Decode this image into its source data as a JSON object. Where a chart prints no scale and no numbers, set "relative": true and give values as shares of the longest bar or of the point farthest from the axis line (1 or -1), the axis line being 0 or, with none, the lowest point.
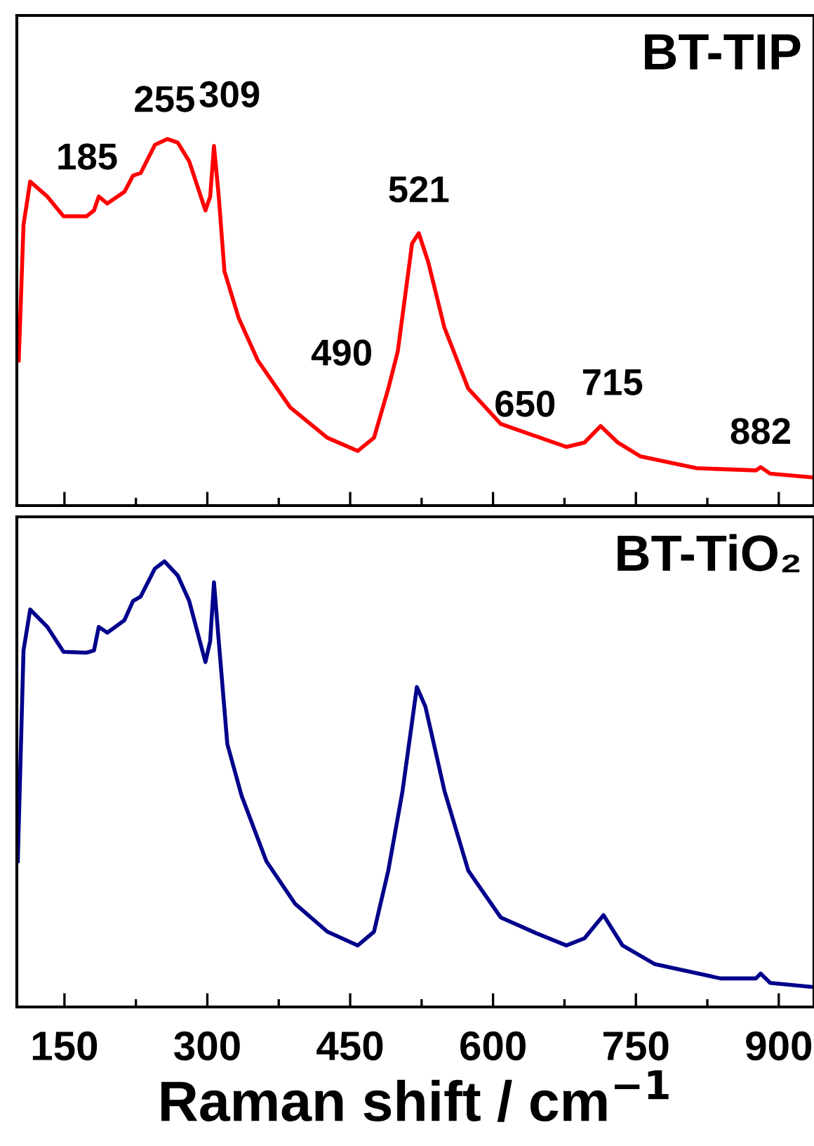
{
  "chart_data": [
    {
      "type": "line",
      "title": "BT-TIP",
      "relative": true,
      "tick_labels": false,
      "legend": false,
      "grid": false,
      "xlim": [
        100,
        937
      ],
      "xticks": [
        150,
        {
          "value": 225,
          "label": null
        },
        300,
        {
          "value": 375,
          "label": null
        },
        450,
        {
          "value": 525,
          "label": null
        },
        600,
        {
          "value": 675,
          "label": null
        },
        750,
        {
          "value": 825,
          "label": null
        },
        900
      ],
      "series": [
        {
          "color": "#ff0000",
          "x": [
            102,
            107,
            114,
            132,
            149,
            173,
            181,
            186,
            195,
            213,
            222,
            230,
            245,
            258,
            269,
            281,
            298,
            303,
            307,
            312,
            318,
            333,
            353,
            387,
            426,
            458,
            475,
            490,
            500,
            515,
            522,
            532,
            549,
            574,
            608,
            642,
            677,
            696,
            713,
            731,
            755,
            814,
            876,
            881,
            891,
            935
          ],
          "values": [
            0.396,
            0.766,
            0.884,
            0.843,
            0.789,
            0.789,
            0.805,
            0.843,
            0.824,
            0.856,
            0.9,
            0.907,
            0.984,
            1.0,
            0.99,
            0.939,
            0.805,
            0.843,
            0.981,
            0.843,
            0.639,
            0.511,
            0.396,
            0.268,
            0.185,
            0.149,
            0.185,
            0.319,
            0.421,
            0.715,
            0.743,
            0.664,
            0.485,
            0.319,
            0.223,
            0.192,
            0.16,
            0.172,
            0.217,
            0.172,
            0.134,
            0.102,
            0.096,
            0.105,
            0.087,
            0.077
          ]
        }
      ],
      "annotations": [
        {
          "text": "185",
          "x": 186,
          "y": 0.843
        },
        {
          "text": "255",
          "x": 255,
          "y": 1.0
        },
        {
          "text": "309",
          "x": 307,
          "y": 0.981
        },
        {
          "text": "490",
          "x": 490,
          "y": 0.319
        },
        {
          "text": "521",
          "x": 522,
          "y": 0.743
        },
        {
          "text": "650",
          "x": 650,
          "y": 0.19
        },
        {
          "text": "715",
          "x": 713,
          "y": 0.217
        },
        {
          "text": "882",
          "x": 881,
          "y": 0.105
        }
      ]
    },
    {
      "type": "line",
      "title": "BT-TiO₂",
      "relative": true,
      "tick_labels": "x",
      "legend": false,
      "grid": false,
      "xlabel": "Raman shift / cm$^{−1}$",
      "xlim": [
        100,
        937
      ],
      "xticks": [
        150,
        {
          "value": 225,
          "label": null
        },
        300,
        {
          "value": 375,
          "label": null
        },
        450,
        {
          "value": 525,
          "label": null
        },
        600,
        {
          "value": 675,
          "label": null
        },
        750,
        {
          "value": 825,
          "label": null
        },
        900
      ],
      "series": [
        {
          "color": "#00008b",
          "x": [
            101,
            107,
            114,
            132,
            149,
            173,
            181,
            186,
            195,
            213,
            222,
            230,
            245,
            255,
            269,
            281,
            298,
            303,
            307,
            312,
            321,
            336,
            362,
            392,
            426,
            458,
            475,
            490,
            505,
            520,
            529,
            549,
            574,
            608,
            647,
            677,
            696,
            716,
            736,
            770,
            839,
            876,
            881,
            891,
            935
          ],
          "values": [
            0.327,
            0.8,
            0.892,
            0.853,
            0.797,
            0.795,
            0.8,
            0.853,
            0.84,
            0.868,
            0.911,
            0.921,
            0.984,
            1.0,
            0.968,
            0.911,
            0.774,
            0.821,
            0.953,
            0.821,
            0.59,
            0.474,
            0.327,
            0.232,
            0.169,
            0.138,
            0.169,
            0.306,
            0.485,
            0.718,
            0.674,
            0.485,
            0.306,
            0.201,
            0.164,
            0.138,
            0.154,
            0.206,
            0.138,
            0.096,
            0.064,
            0.064,
            0.075,
            0.054,
            0.045
          ]
        }
      ]
    }
  ]
}
